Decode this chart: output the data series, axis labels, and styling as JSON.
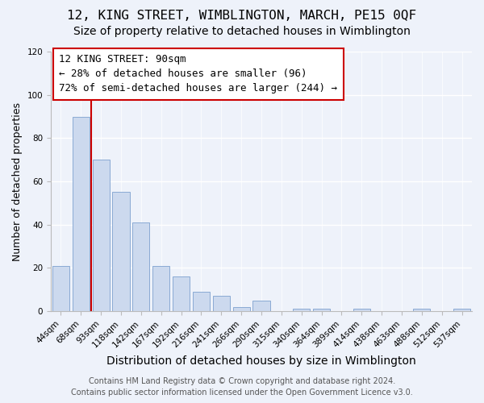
{
  "title": "12, KING STREET, WIMBLINGTON, MARCH, PE15 0QF",
  "subtitle": "Size of property relative to detached houses in Wimblington",
  "xlabel": "Distribution of detached houses by size in Wimblington",
  "ylabel": "Number of detached properties",
  "bar_labels": [
    "44sqm",
    "68sqm",
    "93sqm",
    "118sqm",
    "142sqm",
    "167sqm",
    "192sqm",
    "216sqm",
    "241sqm",
    "266sqm",
    "290sqm",
    "315sqm",
    "340sqm",
    "364sqm",
    "389sqm",
    "414sqm",
    "438sqm",
    "463sqm",
    "488sqm",
    "512sqm",
    "537sqm"
  ],
  "bar_values": [
    21,
    90,
    70,
    55,
    41,
    21,
    16,
    9,
    7,
    2,
    5,
    0,
    1,
    1,
    0,
    1,
    0,
    0,
    1,
    0,
    1
  ],
  "bar_color": "#ccd9ee",
  "bar_edge_color": "#8aaad4",
  "vline_x": 1.5,
  "vline_color": "#cc0000",
  "ylim": [
    0,
    120
  ],
  "annotation_title": "12 KING STREET: 90sqm",
  "annotation_line1": "← 28% of detached houses are smaller (96)",
  "annotation_line2": "72% of semi-detached houses are larger (244) →",
  "annotation_box_color": "#ffffff",
  "annotation_box_edge": "#cc0000",
  "footer_line1": "Contains HM Land Registry data © Crown copyright and database right 2024.",
  "footer_line2": "Contains public sector information licensed under the Open Government Licence v3.0.",
  "title_fontsize": 11.5,
  "subtitle_fontsize": 10,
  "xlabel_fontsize": 10,
  "ylabel_fontsize": 9,
  "tick_fontsize": 7.5,
  "annotation_fontsize": 9,
  "footer_fontsize": 7,
  "bg_color": "#eef2fa"
}
